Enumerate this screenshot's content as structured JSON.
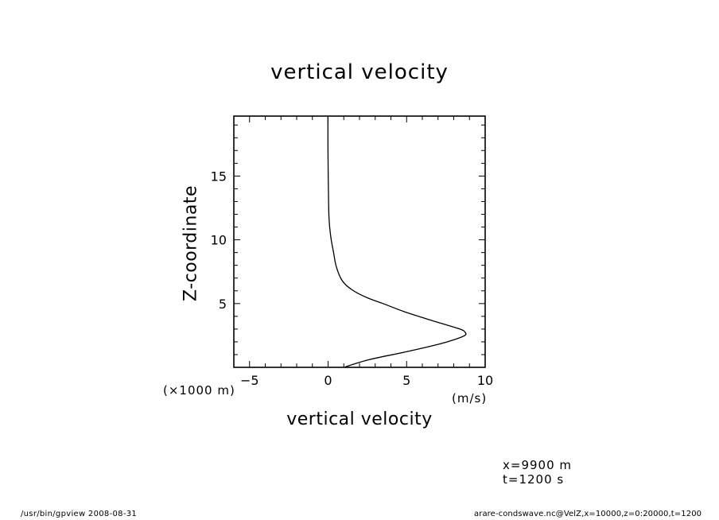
{
  "chart_data": {
    "type": "line",
    "title": "vertical velocity",
    "xlabel": "vertical velocity",
    "xunit": "(m/s)",
    "ylabel": "Z-coordinate",
    "yunit": "(×1000 m)",
    "xlim": [
      -6,
      10
    ],
    "ylim": [
      0,
      19.7
    ],
    "x_ticks": [
      -5,
      0,
      5,
      10
    ],
    "x_tick_labels": [
      "−5",
      "0",
      "5",
      "10"
    ],
    "y_ticks": [
      5,
      10,
      15
    ],
    "y_tick_labels": [
      "5",
      "10",
      "15"
    ],
    "grid": false,
    "legend": "none",
    "series": [
      {
        "x": [
          1.0,
          2.6,
          4.9,
          7.0,
          8.1,
          8.7,
          8.75,
          8.4,
          6.8,
          5.0,
          3.5,
          2.6,
          1.9,
          1.5,
          1.1,
          0.8,
          0.5,
          0.35,
          0.2,
          0.1,
          0.05,
          0.02,
          0.0,
          -0.01,
          -0.01
        ],
        "y": [
          0.0,
          0.6,
          1.2,
          1.8,
          2.2,
          2.5,
          2.7,
          3.0,
          3.6,
          4.3,
          5.0,
          5.4,
          5.8,
          6.1,
          6.5,
          7.0,
          8.0,
          9.0,
          10.0,
          11.0,
          12.0,
          14.0,
          16.0,
          18.0,
          19.7
        ]
      }
    ]
  },
  "info": {
    "x_text": "x=9900  m",
    "t_text": "t=1200  s"
  },
  "footer": {
    "left": "/usr/bin/gpview   2008-08-31",
    "right": "arare-condswave.nc@VelZ,x=10000,z=0:20000,t=1200"
  }
}
